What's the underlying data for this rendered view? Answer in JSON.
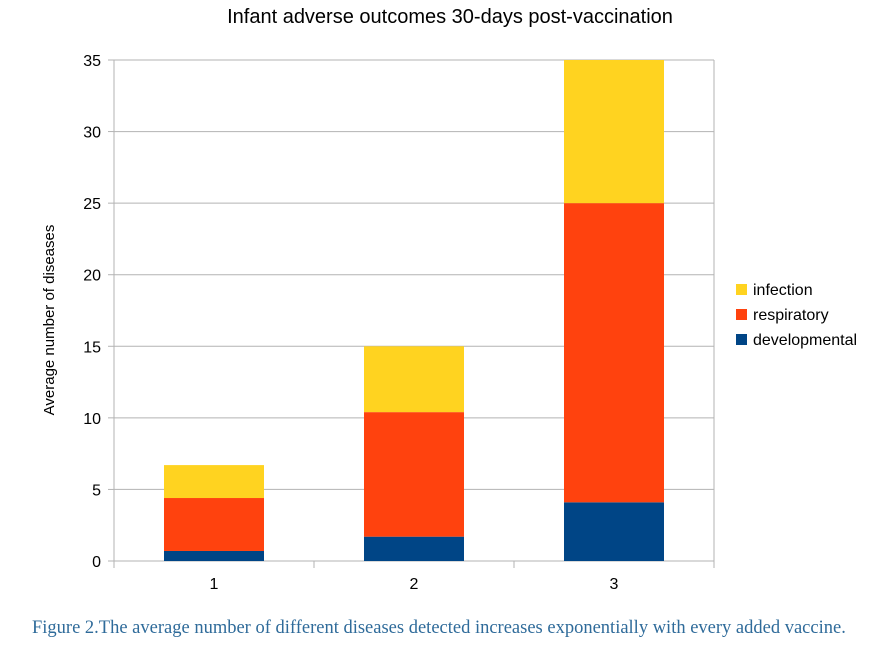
{
  "chart_data": {
    "type": "bar",
    "stacked": true,
    "title": "Infant adverse outcomes 30-days post-vaccination",
    "xlabel": "",
    "ylabel": "Average number of diseases",
    "categories": [
      "1",
      "2",
      "3"
    ],
    "series": [
      {
        "name": "developmental",
        "color": "#004586",
        "values": [
          0.7,
          1.7,
          4.1
        ]
      },
      {
        "name": "respiratory",
        "color": "#ff420e",
        "values": [
          3.7,
          8.7,
          20.9
        ]
      },
      {
        "name": "infection",
        "color": "#ffd320",
        "values": [
          2.3,
          4.6,
          10.0
        ]
      }
    ],
    "legend_order": [
      "infection",
      "respiratory",
      "developmental"
    ],
    "legend_position": "right",
    "ylim": [
      0,
      35
    ],
    "yticks": [
      0,
      5,
      10,
      15,
      20,
      25,
      30,
      35
    ],
    "grid": true
  },
  "caption": {
    "text": "Figure 2.The average number of different diseases detected increases exponentially with every added vaccine."
  }
}
